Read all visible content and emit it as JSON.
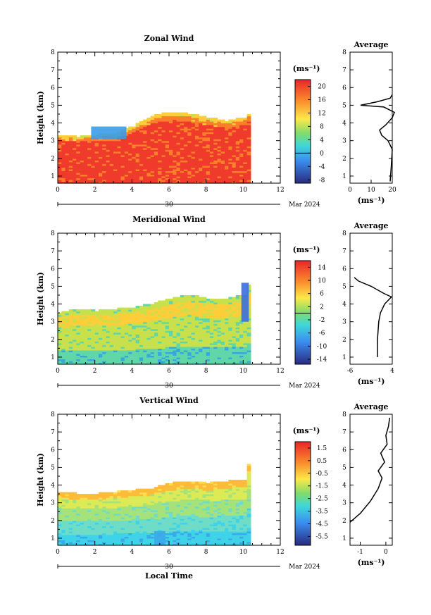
{
  "chart_data": [
    {
      "type": "heatmap",
      "title": "Zonal Wind",
      "ylabel": "Height (km)",
      "xlim": [
        0,
        12
      ],
      "ylim": [
        0.6,
        8
      ],
      "xticks": [
        "0",
        "2",
        "4",
        "6",
        "8",
        "10",
        "12"
      ],
      "yticks": [
        "1",
        "2",
        "3",
        "4",
        "5",
        "6",
        "7",
        "8"
      ],
      "date_axis": {
        "label": "30",
        "right_label": "Mar 2024"
      },
      "colorbar": {
        "unit": "(ms⁻¹)",
        "range": [
          -9,
          22
        ],
        "tick_values": [
          20,
          16,
          12,
          8,
          4,
          0,
          -4,
          -8
        ],
        "tick_labels": [
          "20",
          "16",
          "12",
          "8",
          "4",
          "0",
          "-4",
          "-8"
        ]
      },
      "field": {
        "x_end": 10.3,
        "top_height": [
          [
            0,
            3.3
          ],
          [
            1,
            3.2
          ],
          [
            2,
            3.3
          ],
          [
            3,
            3.4
          ],
          [
            4,
            3.8
          ],
          [
            5,
            4.4
          ],
          [
            6,
            4.6
          ],
          [
            7,
            4.5
          ],
          [
            8,
            4.3
          ],
          [
            9,
            4.1
          ],
          [
            10,
            4.3
          ],
          [
            10.3,
            4.6
          ]
        ],
        "color_scale": [
          "#ef3b2c",
          "#f97f2a",
          "#fdcd3a",
          "#c8e04b",
          "#61d6a8",
          "#35a8e0",
          "#3a5ad0"
        ],
        "blob": {
          "x": [
            1.8,
            3.7
          ],
          "y": [
            3.1,
            3.8
          ],
          "value": 4
        }
      },
      "average_profile": {
        "title": "Average",
        "xlabel": "(ms⁻¹)",
        "xlim": [
          0,
          20
        ],
        "xticks": [
          "0",
          "10",
          "20"
        ],
        "ylim": [
          0.6,
          8
        ],
        "points": [
          [
            19,
            0.7
          ],
          [
            19.5,
            1.5
          ],
          [
            20,
            2.5
          ],
          [
            18,
            3.0
          ],
          [
            15,
            3.3
          ],
          [
            14,
            3.6
          ],
          [
            17,
            3.9
          ],
          [
            20,
            4.3
          ],
          [
            21,
            4.6
          ],
          [
            16,
            4.9
          ],
          [
            5,
            5.0
          ],
          [
            13,
            5.2
          ],
          [
            19,
            5.4
          ],
          [
            20,
            5.6
          ]
        ]
      }
    },
    {
      "type": "heatmap",
      "title": "Meridional Wind",
      "ylabel": "Height (km)",
      "xlim": [
        0,
        12
      ],
      "ylim": [
        0.6,
        8
      ],
      "xticks": [
        "0",
        "2",
        "4",
        "6",
        "8",
        "10",
        "12"
      ],
      "yticks": [
        "1",
        "2",
        "3",
        "4",
        "5",
        "6",
        "7",
        "8"
      ],
      "date_axis": {
        "label": "30",
        "right_label": "Mar 2024"
      },
      "colorbar": {
        "unit": "(ms⁻¹)",
        "range": [
          -15.5,
          16
        ],
        "tick_values": [
          14,
          10,
          6,
          2,
          -2,
          -6,
          -10,
          -14
        ],
        "tick_labels": [
          "14",
          "10",
          "6",
          "2",
          "-2",
          "-6",
          "-10",
          "-14"
        ]
      },
      "field": {
        "x_end": 10.3,
        "top_height": [
          [
            0,
            3.5
          ],
          [
            1,
            3.7
          ],
          [
            2,
            3.6
          ],
          [
            3,
            3.7
          ],
          [
            4,
            3.8
          ],
          [
            5,
            4.0
          ],
          [
            6,
            4.3
          ],
          [
            7,
            4.5
          ],
          [
            8,
            4.3
          ],
          [
            9,
            4.3
          ],
          [
            10,
            4.5
          ],
          [
            10.3,
            5.3
          ]
        ],
        "color_scale": [
          "#ef3b2c",
          "#f97f2a",
          "#fdcd3a",
          "#c8e04b",
          "#61d6a8",
          "#35a8e0",
          "#3a5ad0"
        ],
        "blob": {
          "x": [
            9.9,
            10.3
          ],
          "y": [
            3.0,
            5.2
          ],
          "value": -12
        }
      },
      "average_profile": {
        "title": "Average",
        "xlabel": "(ms⁻¹)",
        "xlim": [
          -6,
          4
        ],
        "xticks": [
          "-6",
          "4"
        ],
        "ylim": [
          0.6,
          8
        ],
        "points": [
          [
            0.5,
            1.0
          ],
          [
            0.5,
            2.0
          ],
          [
            0.8,
            3.0
          ],
          [
            1.2,
            3.5
          ],
          [
            2.2,
            4.0
          ],
          [
            3.8,
            4.4
          ],
          [
            2.0,
            4.6
          ],
          [
            -1.0,
            5.0
          ],
          [
            -4.0,
            5.3
          ],
          [
            -5.0,
            5.5
          ]
        ]
      }
    },
    {
      "type": "heatmap",
      "title": "Vertical Wind",
      "ylabel": "Height (km)",
      "xlabel": "Local Time",
      "xlim": [
        0,
        12
      ],
      "ylim": [
        0.6,
        8
      ],
      "xticks": [
        "0",
        "2",
        "4",
        "6",
        "8",
        "10",
        "12"
      ],
      "yticks": [
        "1",
        "2",
        "3",
        "4",
        "5",
        "6",
        "7",
        "8"
      ],
      "date_axis": {
        "label": "30",
        "right_label": "Mar 2024"
      },
      "colorbar": {
        "unit": "(ms⁻¹)",
        "range": [
          -6.2,
          2
        ],
        "tick_values": [
          1.5,
          0.5,
          -0.5,
          -1.5,
          -2.5,
          -3.5,
          -4.5,
          -5.5
        ],
        "tick_labels": [
          "1.5",
          "0.5",
          "-0.5",
          "-1.5",
          "-2.5",
          "-3.5",
          "-4.5",
          "-5.5"
        ]
      },
      "field": {
        "x_end": 10.3,
        "top_height": [
          [
            0,
            3.6
          ],
          [
            1,
            3.5
          ],
          [
            2,
            3.5
          ],
          [
            3,
            3.6
          ],
          [
            4,
            3.7
          ],
          [
            5,
            3.8
          ],
          [
            6,
            4.1
          ],
          [
            7,
            4.2
          ],
          [
            8,
            4.1
          ],
          [
            9,
            4.2
          ],
          [
            10,
            4.3
          ],
          [
            10.3,
            5.6
          ]
        ],
        "color_scale": [
          "#fdbb3a",
          "#fddc50",
          "#dcea55",
          "#a5e27a",
          "#6fdcc7",
          "#3ed3e8",
          "#3aa8ea"
        ],
        "blob": {
          "x": [
            5.2,
            5.8
          ],
          "y": [
            0.6,
            1.4
          ],
          "value": -4
        }
      },
      "average_profile": {
        "title": "Average",
        "xlabel": "(ms⁻¹)",
        "xlim": [
          -1.4,
          0.25
        ],
        "xticks": [
          "-1",
          "0"
        ],
        "ylim": [
          0.6,
          8
        ],
        "points": [
          [
            -1.4,
            1.9
          ],
          [
            -1.0,
            2.4
          ],
          [
            -0.6,
            3.1
          ],
          [
            -0.3,
            3.8
          ],
          [
            -0.15,
            4.4
          ],
          [
            -0.3,
            4.8
          ],
          [
            -0.05,
            5.3
          ],
          [
            -0.2,
            5.8
          ],
          [
            0.05,
            6.3
          ],
          [
            0.0,
            6.8
          ],
          [
            0.1,
            7.3
          ],
          [
            0.15,
            7.8
          ]
        ]
      }
    }
  ]
}
